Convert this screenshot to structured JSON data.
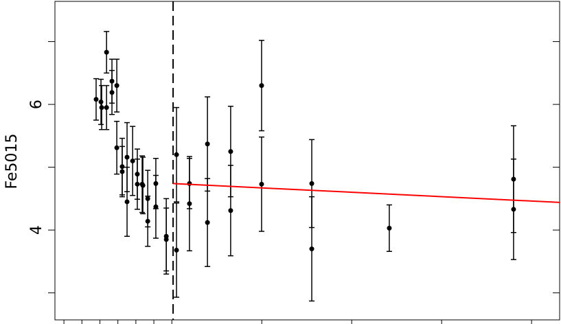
{
  "chart_data": {
    "type": "scatter",
    "ylabel": "Fe5015",
    "x": [
      1.79,
      2.06,
      2.1,
      2.37,
      2.37,
      2.67,
      2.67,
      2.94,
      2.94,
      3.24,
      3.24,
      3.51,
      3.51,
      3.82,
      4.08,
      4.08,
      4.35,
      4.39,
      4.66,
      4.66,
      5.11,
      5.11,
      5.69,
      5.69,
      6.26,
      6.26,
      6.98,
      6.98,
      7.98,
      7.98,
      9.27,
      9.27,
      10.99,
      10.99,
      13.78,
      13.78,
      18.09,
      25.0,
      25.0
    ],
    "series": [
      {
        "color": "#000000",
        "values": [
          6.08,
          6.04,
          5.95,
          6.83,
          5.95,
          6.37,
          6.19,
          6.3,
          5.31,
          5.01,
          4.93,
          5.16,
          4.45,
          5.1,
          4.89,
          4.73,
          4.73,
          4.71,
          4.5,
          4.14,
          4.74,
          4.37,
          3.9,
          3.85,
          5.2,
          3.68,
          4.74,
          4.42,
          5.37,
          4.12,
          5.25,
          4.31,
          6.3,
          4.73,
          4.74,
          3.7,
          4.03,
          4.81,
          4.33
        ],
        "errors": [
          0.33,
          0.36,
          0.35,
          0.33,
          0.35,
          0.35,
          0.35,
          0.42,
          0.42,
          0.45,
          0.4,
          0.55,
          0.55,
          0.55,
          0.4,
          0.4,
          0.45,
          0.45,
          0.45,
          0.4,
          0.4,
          0.5,
          0.6,
          0.5,
          0.75,
          0.75,
          0.4,
          0.75,
          0.75,
          0.7,
          0.72,
          0.72,
          0.72,
          0.75,
          0.7,
          0.83,
          0.37,
          0.85,
          0.8
        ]
      }
    ],
    "fit": {
      "x": [
        6.07,
        27.56
      ],
      "y": [
        4.74,
        4.44
      ],
      "color": "#ff0000"
    },
    "vline": 6.07,
    "xlim": [
      -0.5,
      27.56
    ],
    "ylim": [
      2.57,
      7.64
    ],
    "xticks": [
      0,
      1,
      2,
      3,
      4,
      5,
      6,
      11,
      16,
      21,
      26
    ],
    "yticks": [
      4,
      6
    ],
    "yminorticks": [
      3,
      5,
      7
    ]
  }
}
